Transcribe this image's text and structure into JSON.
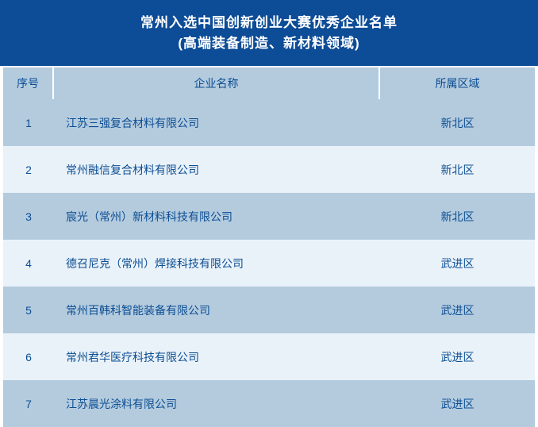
{
  "title": {
    "line1": "常州入选中国创新创业大赛优秀企业名单",
    "line2": "(高端装备制造、新材料领域)"
  },
  "table": {
    "columns": [
      "序号",
      "企业名称",
      "所属区域"
    ],
    "rows": [
      {
        "no": "1",
        "company": "江苏三强复合材料有限公司",
        "region": "新北区"
      },
      {
        "no": "2",
        "company": "常州融信复合材料有限公司",
        "region": "新北区"
      },
      {
        "no": "3",
        "company": "宸光（常州）新材料科技有限公司",
        "region": "新北区"
      },
      {
        "no": "4",
        "company": "德召尼克（常州）焊接科技有限公司",
        "region": "武进区"
      },
      {
        "no": "5",
        "company": "常州百韩科智能装备有限公司",
        "region": "武进区"
      },
      {
        "no": "6",
        "company": "常州君华医疗科技有限公司",
        "region": "武进区"
      },
      {
        "no": "7",
        "company": "江苏晨光涂料有限公司",
        "region": "武进区"
      }
    ]
  },
  "colors": {
    "banner_bg": "#0d4c96",
    "banner_text": "#ffffff",
    "header_row_bg": "#b4cbde",
    "row_odd_bg": "#eaf2f9",
    "row_even_bg": "#b4cbde",
    "text_blue": "#0b4e93",
    "divider": "#ffffff"
  },
  "chart_data": {
    "type": "table",
    "title": "常州入选中国创新创业大赛优秀企业名单 (高端装备制造、新材料领域)",
    "columns": [
      "序号",
      "企业名称",
      "所属区域"
    ],
    "rows": [
      [
        "1",
        "江苏三强复合材料有限公司",
        "新北区"
      ],
      [
        "2",
        "常州融信复合材料有限公司",
        "新北区"
      ],
      [
        "3",
        "宸光（常州）新材料科技有限公司",
        "新北区"
      ],
      [
        "4",
        "德召尼克（常州）焊接科技有限公司",
        "武进区"
      ],
      [
        "5",
        "常州百韩科智能装备有限公司",
        "武进区"
      ],
      [
        "6",
        "常州君华医疗科技有限公司",
        "武进区"
      ],
      [
        "7",
        "江苏晨光涂料有限公司",
        "武进区"
      ]
    ]
  }
}
